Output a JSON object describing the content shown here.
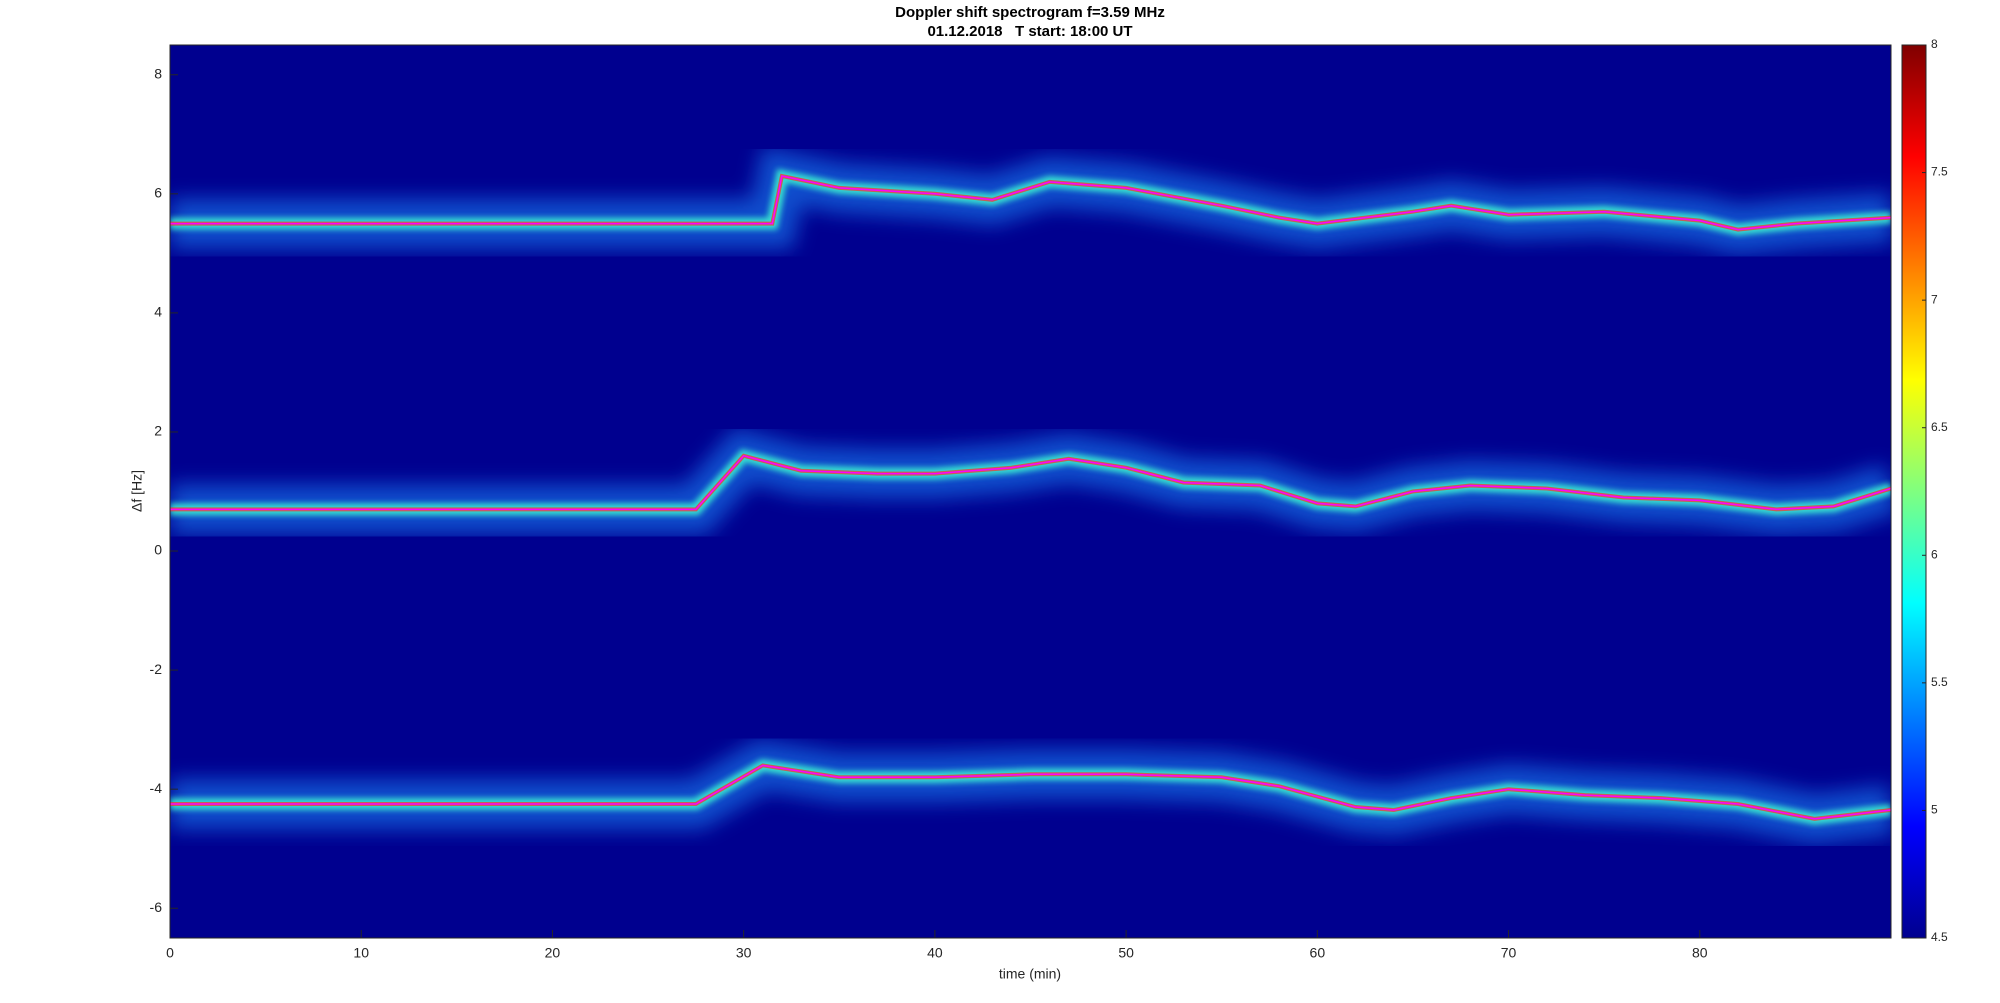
{
  "chart_data": {
    "type": "spectrogram",
    "title": "Doppler shift spectrogram f=3.59 MHz",
    "subtitle": "01.12.2018   T start: 18:00 UT",
    "x_label": "time (min)",
    "y_label": "Δf [Hz]",
    "xlim": [
      0,
      90
    ],
    "xticks": [
      0,
      10,
      20,
      30,
      40,
      50,
      60,
      70,
      80
    ],
    "ylim": [
      -6.5,
      8.5
    ],
    "yticks": [
      -6,
      -4,
      -2,
      0,
      2,
      4,
      6,
      8
    ],
    "clim": [
      4.5,
      8
    ],
    "cticks": [
      4.5,
      5,
      5.5,
      6,
      6.5,
      7,
      7.5,
      8
    ],
    "colormap": "jet",
    "series": [
      {
        "color": "#ff00ff",
        "x": [
          0,
          10,
          20,
          31.5,
          32,
          35,
          40,
          43,
          46,
          50,
          55,
          58,
          60,
          65,
          67,
          70,
          75,
          80,
          82,
          85,
          90
        ],
        "values": [
          5.5,
          5.5,
          5.5,
          5.5,
          6.3,
          6.1,
          6.0,
          5.9,
          6.2,
          6.1,
          5.8,
          5.6,
          5.5,
          5.7,
          5.8,
          5.65,
          5.7,
          5.55,
          5.4,
          5.5,
          5.6
        ]
      },
      {
        "color": "#ff00ff",
        "x": [
          0,
          10,
          20,
          27.5,
          30,
          33,
          37,
          40,
          44,
          47,
          50,
          53,
          57,
          60,
          62,
          65,
          68,
          72,
          76,
          80,
          84,
          87,
          90
        ],
        "values": [
          0.7,
          0.7,
          0.7,
          0.7,
          1.6,
          1.35,
          1.3,
          1.3,
          1.4,
          1.55,
          1.4,
          1.15,
          1.1,
          0.8,
          0.75,
          1.0,
          1.1,
          1.05,
          0.9,
          0.85,
          0.7,
          0.75,
          1.05
        ]
      },
      {
        "color": "#ff00ff",
        "x": [
          0,
          10,
          20,
          27.5,
          31,
          35,
          40,
          45,
          50,
          55,
          58,
          62,
          64,
          67,
          70,
          74,
          78,
          82,
          86,
          90
        ],
        "values": [
          -4.25,
          -4.25,
          -4.25,
          -4.25,
          -3.6,
          -3.8,
          -3.8,
          -3.75,
          -3.75,
          -3.8,
          -3.95,
          -4.3,
          -4.35,
          -4.15,
          -4.0,
          -4.1,
          -4.15,
          -4.25,
          -4.5,
          -4.35
        ]
      }
    ]
  }
}
